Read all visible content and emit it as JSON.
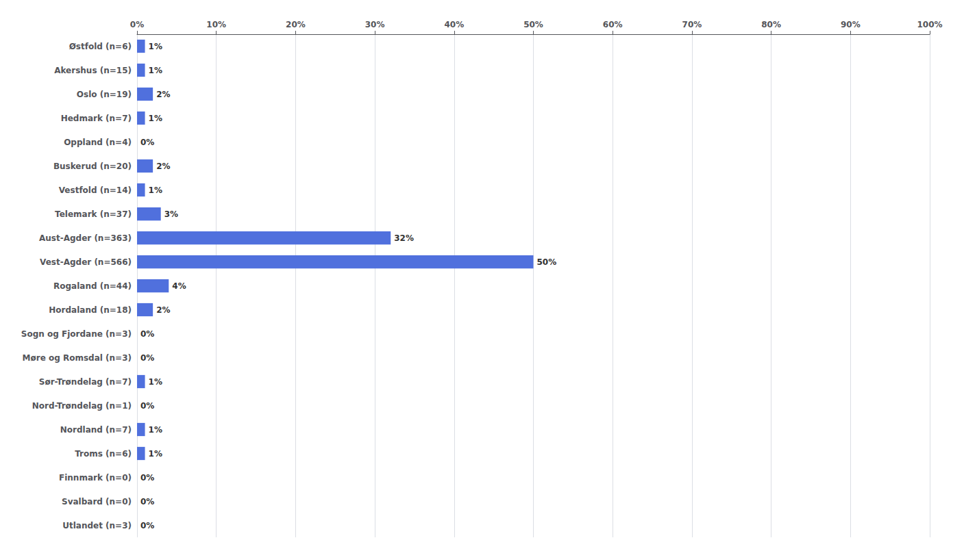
{
  "chart_data": {
    "type": "bar",
    "orientation": "horizontal",
    "categories": [
      "Østfold (n=6)",
      "Akershus (n=15)",
      "Oslo (n=19)",
      "Hedmark (n=7)",
      "Oppland (n=4)",
      "Buskerud (n=20)",
      "Vestfold (n=14)",
      "Telemark (n=37)",
      "Aust-Agder (n=363)",
      "Vest-Agder (n=566)",
      "Rogaland (n=44)",
      "Hordaland (n=18)",
      "Sogn og Fjordane (n=3)",
      "Møre og Romsdal (n=3)",
      "Sør-Trøndelag (n=7)",
      "Nord-Trøndelag (n=1)",
      "Nordland (n=7)",
      "Troms (n=6)",
      "Finnmark (n=0)",
      "Svalbard (n=0)",
      "Utlandet (n=3)"
    ],
    "values": [
      1,
      1,
      2,
      1,
      0,
      2,
      1,
      3,
      32,
      50,
      4,
      2,
      0,
      0,
      1,
      0,
      1,
      1,
      0,
      0,
      0
    ],
    "value_labels": [
      "1%",
      "1%",
      "2%",
      "1%",
      "0%",
      "2%",
      "1%",
      "3%",
      "32%",
      "50%",
      "4%",
      "2%",
      "0%",
      "0%",
      "1%",
      "0%",
      "1%",
      "1%",
      "0%",
      "0%",
      "0%"
    ],
    "data_labels": true,
    "xlim": [
      0,
      100
    ],
    "xticks": [
      {
        "value": 0,
        "label": "0%"
      },
      {
        "value": 10,
        "label": "10%"
      },
      {
        "value": 20,
        "label": "20%"
      },
      {
        "value": 30,
        "label": "30%"
      },
      {
        "value": 40,
        "label": "40%"
      },
      {
        "value": 50,
        "label": "50%"
      },
      {
        "value": 60,
        "label": "60%"
      },
      {
        "value": 70,
        "label": "70%"
      },
      {
        "value": 80,
        "label": "80%"
      },
      {
        "value": 90,
        "label": "90%"
      },
      {
        "value": 100,
        "label": "100%"
      }
    ],
    "grid": true
  }
}
